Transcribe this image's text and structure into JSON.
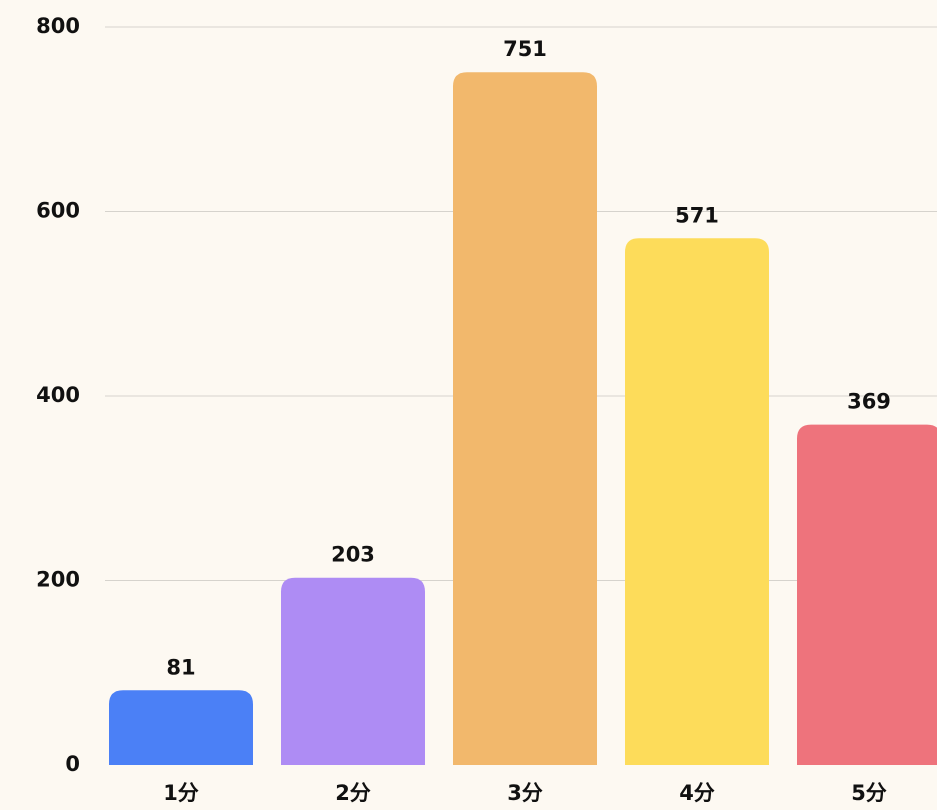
{
  "chart_data": {
    "type": "bar",
    "categories": [
      "1分",
      "2分",
      "3分",
      "4分",
      "5分"
    ],
    "values": [
      81,
      203,
      751,
      571,
      369
    ],
    "colors": [
      "#4b80f6",
      "#ae8cf4",
      "#f2b86c",
      "#fddc5a",
      "#ee737c"
    ],
    "ylim": [
      0,
      800
    ],
    "yticks": [
      0,
      200,
      400,
      600,
      800
    ],
    "grid": true
  }
}
